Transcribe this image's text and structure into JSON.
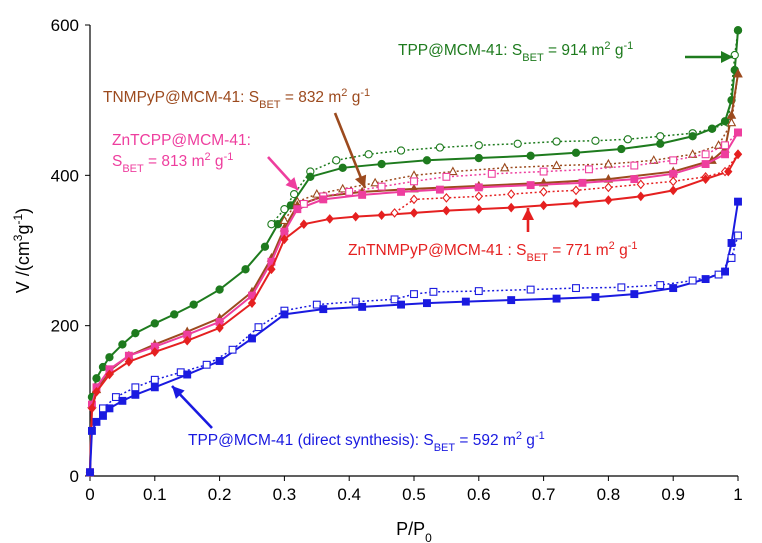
{
  "chart_data": {
    "type": "line",
    "xlabel": {
      "main": "P/P",
      "sub": "0"
    },
    "ylabel": {
      "prefix": "V /(cm",
      "sup1": "3",
      "mid": "g",
      "sup2": "-1",
      "suffix": ")"
    },
    "xlim": [
      0,
      1
    ],
    "ylim": [
      0,
      600
    ],
    "xticks": [
      "0",
      "0.1",
      "0.2",
      "0.3",
      "0.4",
      "0.5",
      "0.6",
      "0.7",
      "0.8",
      "0.9",
      "1"
    ],
    "yticks": [
      "0",
      "200",
      "400",
      "600"
    ],
    "grid": false,
    "series": [
      {
        "name": "TPP@MCM-41",
        "color": "#1e7b1e",
        "marker": "circle",
        "adsorption": {
          "x": [
            0,
            0.003,
            0.01,
            0.02,
            0.03,
            0.05,
            0.07,
            0.1,
            0.13,
            0.16,
            0.2,
            0.24,
            0.27,
            0.29,
            0.31,
            0.34,
            0.39,
            0.45,
            0.52,
            0.6,
            0.68,
            0.75,
            0.82,
            0.88,
            0.93,
            0.96,
            0.98,
            0.99,
            0.995,
            1.0
          ],
          "y": [
            5,
            105,
            130,
            145,
            158,
            175,
            190,
            203,
            215,
            228,
            248,
            275,
            305,
            335,
            360,
            398,
            410,
            415,
            420,
            423,
            426,
            430,
            435,
            442,
            452,
            462,
            472,
            500,
            540,
            593
          ]
        },
        "desorption": {
          "x": [
            1.0,
            0.995,
            0.985,
            0.96,
            0.93,
            0.88,
            0.83,
            0.78,
            0.72,
            0.66,
            0.6,
            0.54,
            0.48,
            0.43,
            0.38,
            0.34,
            0.315,
            0.3,
            0.28
          ],
          "y": [
            593,
            560,
            470,
            462,
            456,
            452,
            448,
            446,
            445,
            442,
            440,
            437,
            433,
            428,
            420,
            405,
            375,
            355,
            335
          ]
        }
      },
      {
        "name": "TNMPyP@MCM-41",
        "color": "#9c4a1e",
        "marker": "triangle",
        "adsorption": {
          "x": [
            0,
            0.003,
            0.01,
            0.03,
            0.06,
            0.1,
            0.15,
            0.2,
            0.25,
            0.28,
            0.3,
            0.32,
            0.36,
            0.42,
            0.5,
            0.6,
            0.7,
            0.8,
            0.9,
            0.96,
            0.98,
            0.99,
            1.0
          ],
          "y": [
            5,
            95,
            115,
            140,
            160,
            175,
            192,
            210,
            245,
            290,
            330,
            360,
            372,
            378,
            382,
            386,
            390,
            395,
            405,
            420,
            435,
            480,
            535
          ]
        },
        "desorption": {
          "x": [
            1.0,
            0.99,
            0.97,
            0.93,
            0.87,
            0.8,
            0.72,
            0.64,
            0.56,
            0.5,
            0.44,
            0.39,
            0.35,
            0.32,
            0.3
          ],
          "y": [
            535,
            470,
            440,
            428,
            420,
            415,
            413,
            410,
            405,
            400,
            390,
            382,
            375,
            365,
            340
          ]
        }
      },
      {
        "name": "ZnTCPP@MCM-41",
        "color": "#ee3e9e",
        "marker": "square",
        "adsorption": {
          "x": [
            0,
            0.003,
            0.01,
            0.03,
            0.06,
            0.1,
            0.15,
            0.2,
            0.25,
            0.28,
            0.3,
            0.32,
            0.36,
            0.42,
            0.48,
            0.54,
            0.6,
            0.68,
            0.76,
            0.84,
            0.9,
            0.95,
            0.98,
            1.0
          ],
          "y": [
            5,
            95,
            118,
            142,
            160,
            172,
            188,
            205,
            240,
            285,
            325,
            355,
            368,
            374,
            378,
            381,
            384,
            387,
            390,
            395,
            402,
            415,
            428,
            457
          ]
        },
        "desorption": {
          "x": [
            1.0,
            0.98,
            0.95,
            0.9,
            0.84,
            0.77,
            0.7,
            0.62,
            0.55,
            0.5,
            0.45,
            0.4,
            0.36,
            0.33
          ],
          "y": [
            457,
            440,
            428,
            420,
            413,
            408,
            405,
            402,
            398,
            392,
            385,
            378,
            372,
            362
          ]
        }
      },
      {
        "name": "ZnTNMPyP@MCM-41",
        "color": "#e52020",
        "marker": "diamond",
        "adsorption": {
          "x": [
            0,
            0.003,
            0.01,
            0.03,
            0.06,
            0.1,
            0.15,
            0.2,
            0.25,
            0.28,
            0.3,
            0.33,
            0.37,
            0.41,
            0.45,
            0.5,
            0.55,
            0.6,
            0.65,
            0.7,
            0.75,
            0.8,
            0.85,
            0.9,
            0.95,
            0.985,
            1.0
          ],
          "y": [
            5,
            90,
            112,
            135,
            152,
            165,
            180,
            197,
            230,
            275,
            315,
            335,
            342,
            345,
            347,
            350,
            353,
            355,
            357,
            360,
            363,
            367,
            372,
            380,
            395,
            405,
            428
          ]
        },
        "desorption": {
          "x": [
            1.0,
            0.98,
            0.95,
            0.9,
            0.85,
            0.8,
            0.75,
            0.7,
            0.65,
            0.6,
            0.55,
            0.5,
            0.47
          ],
          "y": [
            428,
            405,
            398,
            392,
            388,
            384,
            380,
            378,
            375,
            372,
            370,
            368,
            350
          ]
        }
      },
      {
        "name": "TPP@MCM-41  (direct synthesis)",
        "color": "#1a1ae0",
        "marker": "square",
        "adsorption": {
          "x": [
            0,
            0.003,
            0.01,
            0.02,
            0.03,
            0.05,
            0.07,
            0.1,
            0.15,
            0.2,
            0.25,
            0.3,
            0.36,
            0.42,
            0.48,
            0.52,
            0.58,
            0.65,
            0.72,
            0.78,
            0.84,
            0.9,
            0.95,
            0.98,
            0.99,
            1.0
          ],
          "y": [
            5,
            60,
            72,
            80,
            90,
            100,
            108,
            118,
            135,
            153,
            183,
            215,
            222,
            225,
            228,
            230,
            232,
            234,
            236,
            238,
            242,
            250,
            262,
            272,
            310,
            365
          ]
        },
        "desorption": {
          "x": [
            1.0,
            0.99,
            0.97,
            0.93,
            0.88,
            0.82,
            0.75,
            0.68,
            0.6,
            0.53,
            0.5,
            0.47,
            0.41,
            0.35,
            0.3,
            0.26,
            0.22,
            0.18,
            0.14,
            0.1,
            0.07,
            0.04,
            0.02
          ],
          "y": [
            320,
            290,
            268,
            260,
            254,
            251,
            250,
            248,
            246,
            245,
            242,
            235,
            232,
            228,
            220,
            198,
            168,
            148,
            138,
            128,
            118,
            105,
            90
          ]
        }
      }
    ],
    "annotations": [
      {
        "id": "tpp",
        "color": "#1e7b1e",
        "name": "TPP@MCM-41:",
        "s": "S",
        "sub": "BET",
        "eq": " = 914 m",
        "sup": "2",
        "unit": " g",
        "sup2": "-1"
      },
      {
        "id": "tnmpyp",
        "color": "#9c4a1e",
        "name": "TNMPyP@MCM-41:",
        "s": "S",
        "sub": "BET",
        "eq": " = 832 m",
        "sup": "2",
        "unit": " g",
        "sup2": "-1"
      },
      {
        "id": "zntcpp",
        "color": "#ee3e9e",
        "name": "ZnTCPP@MCM-41:",
        "s": "S",
        "sub": "BET",
        "eq": " = 813 m",
        "sup": "2",
        "unit": " g",
        "sup2": "-1"
      },
      {
        "id": "zntnmpyp",
        "color": "#e52020",
        "name": "ZnTNMPyP@MCM-41",
        "s": " : S",
        "sub": "BET",
        "eq": " = 771 m",
        "sup": "2",
        "unit": " g",
        "sup2": "-1"
      },
      {
        "id": "direct",
        "color": "#1a1ae0",
        "name": "TPP@MCM-41  (direct synthesis): ",
        "s": "S",
        "sub": "BET",
        "eq": " = 592 m",
        "sup": "2",
        "unit": " g",
        "sup2": "-1"
      }
    ]
  }
}
